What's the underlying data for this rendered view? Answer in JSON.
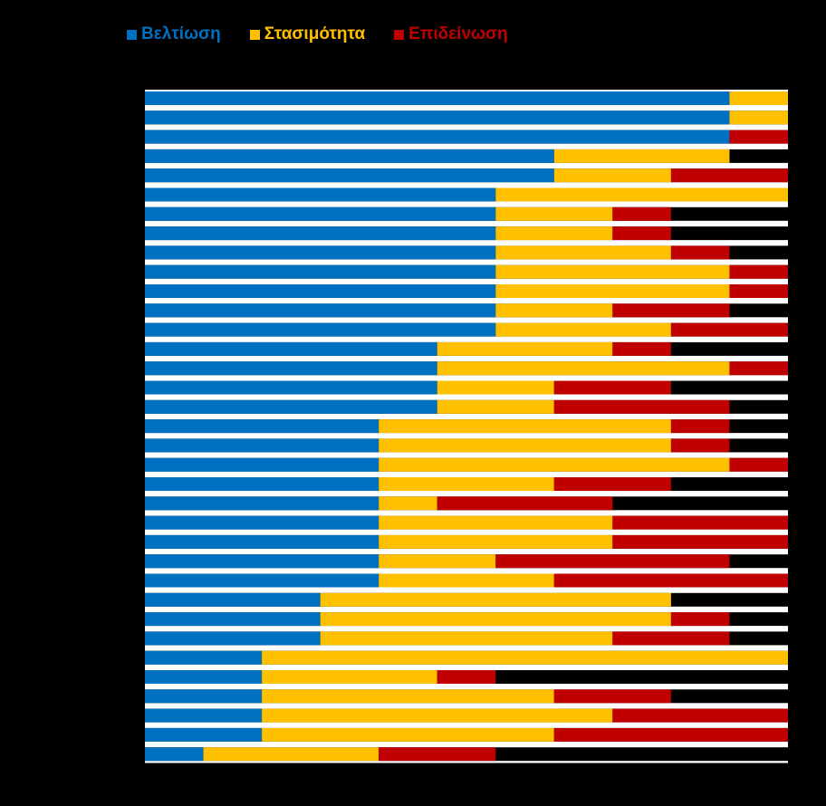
{
  "chart_data": {
    "type": "bar",
    "orientation": "horizontal",
    "stacked": true,
    "legend_position": "top",
    "xlim": [
      0,
      11
    ],
    "series": [
      {
        "name": "Βελτίωση",
        "color": "#0070C0",
        "values": [
          10,
          10,
          10,
          7,
          7,
          6,
          6,
          6,
          6,
          6,
          6,
          6,
          6,
          5,
          5,
          5,
          5,
          4,
          4,
          4,
          4,
          4,
          4,
          4,
          4,
          4,
          3,
          3,
          3,
          2,
          2,
          2,
          2,
          2,
          1
        ]
      },
      {
        "name": "Στασιμότητα",
        "color": "#FFC000",
        "values": [
          1,
          1,
          0,
          3,
          2,
          5,
          2,
          2,
          3,
          4,
          4,
          2,
          3,
          3,
          5,
          2,
          2,
          5,
          5,
          6,
          3,
          1,
          4,
          4,
          2,
          3,
          6,
          6,
          5,
          9,
          3,
          5,
          6,
          5,
          3
        ]
      },
      {
        "name": "Επιδείνωση",
        "color": "#C00000",
        "values": [
          0,
          0,
          1,
          0,
          2,
          0,
          1,
          1,
          1,
          1,
          1,
          2,
          2,
          1,
          1,
          2,
          3,
          1,
          1,
          1,
          2,
          3,
          3,
          3,
          4,
          4,
          0,
          1,
          2,
          0,
          1,
          2,
          3,
          4,
          2
        ]
      }
    ]
  },
  "colors": {
    "background": "#000000",
    "row_gap": "#FFFFFF"
  }
}
